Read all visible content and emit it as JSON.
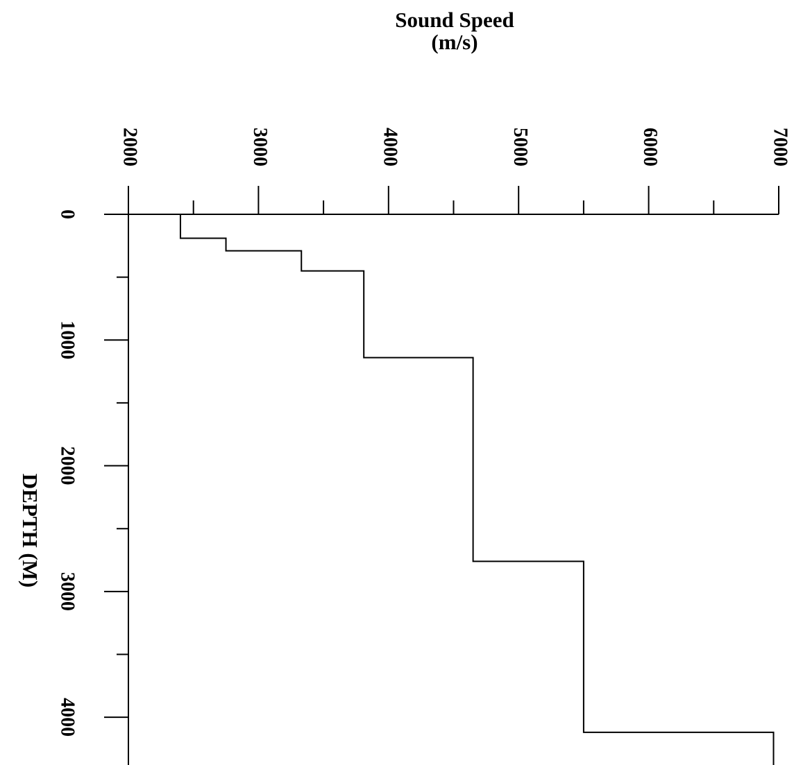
{
  "chart_data": {
    "type": "line",
    "xlabel": "Sound Speed",
    "xunit": "(m/s)",
    "ylabel": "DEPTH (M)",
    "x": [
      2400,
      2400,
      2750,
      2750,
      3330,
      3330,
      3810,
      3810,
      4650,
      4650,
      5500,
      5500,
      6960,
      6960
    ],
    "values": [
      0,
      190,
      190,
      290,
      290,
      450,
      450,
      1140,
      1140,
      2760,
      2760,
      4120,
      4120,
      4380
    ],
    "color": "#000000",
    "xlim": [
      2000,
      7000
    ],
    "xticks": [
      2000,
      3000,
      4000,
      5000,
      6000,
      7000
    ],
    "xminorticks": [
      2500,
      3500,
      4500,
      5500,
      6500
    ],
    "ylim": [
      0,
      4380
    ],
    "yticks": [
      0,
      1000,
      2000,
      3000,
      4000
    ],
    "yminorticks": [
      500,
      1500,
      2500,
      3500
    ],
    "y_inverted": true
  }
}
